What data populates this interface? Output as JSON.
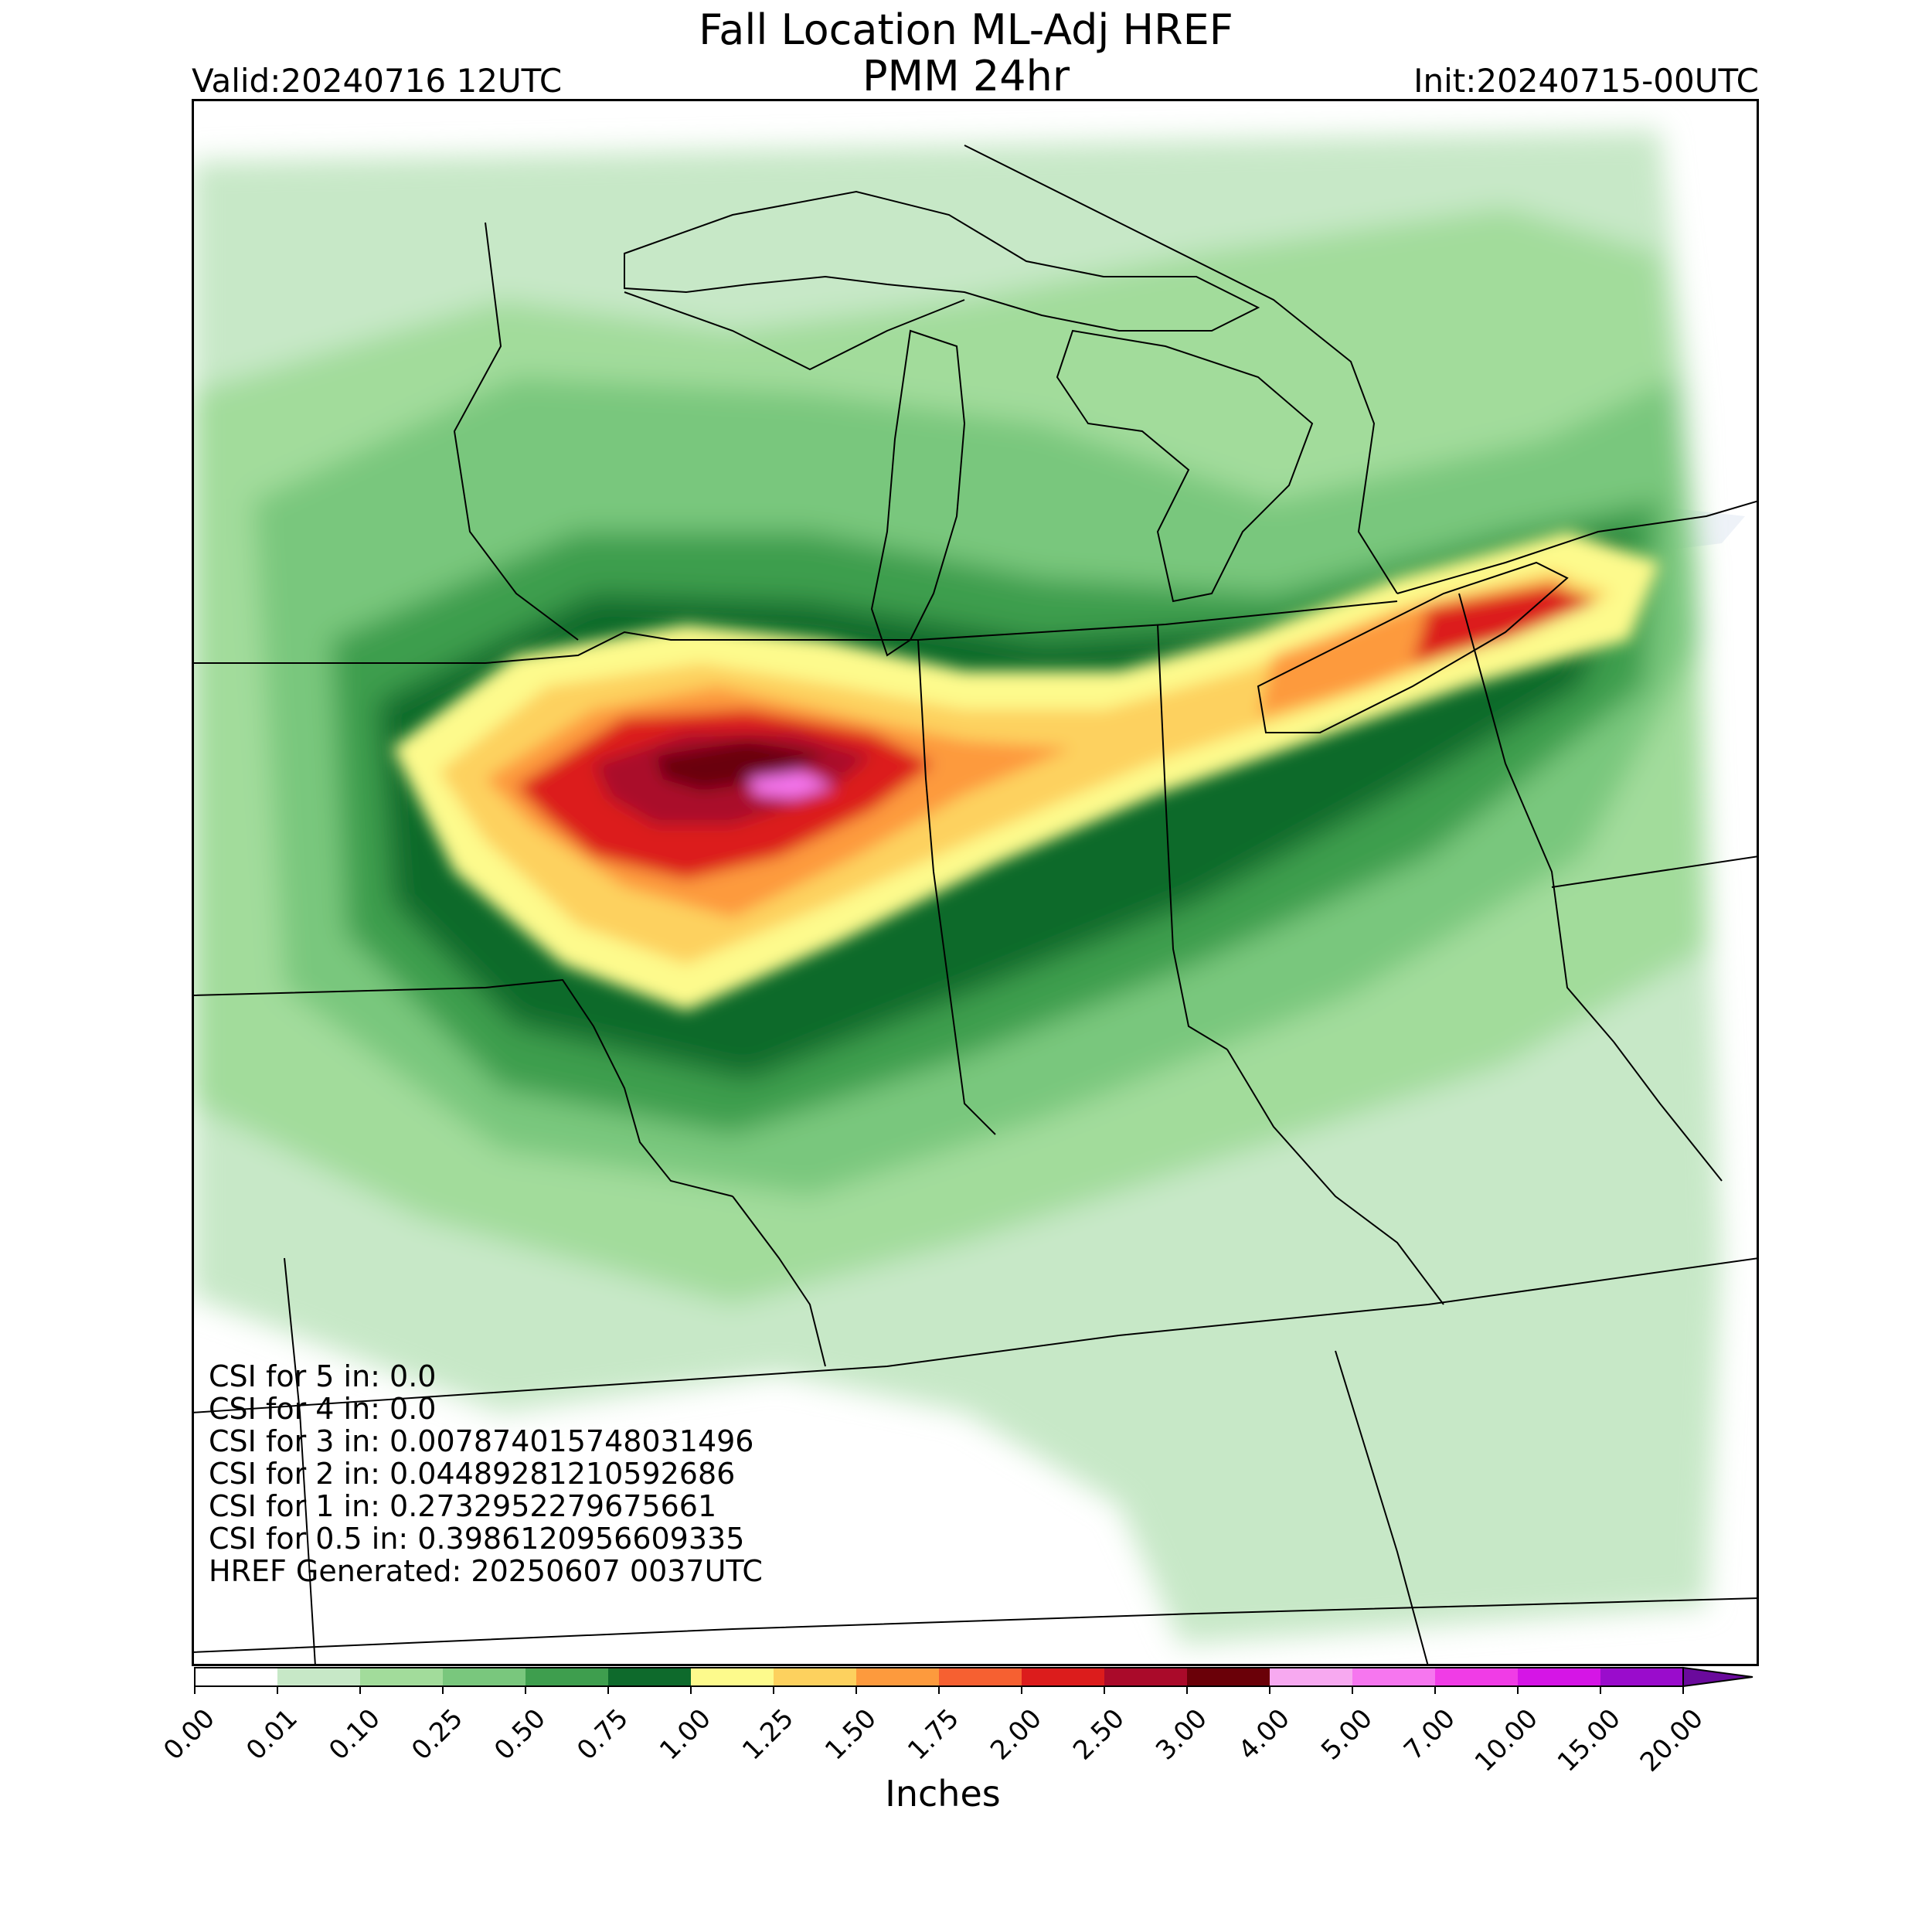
{
  "header": {
    "title_line1": "Fall Location ML-Adj HREF",
    "title_line2": "PMM 24hr",
    "valid": "Valid:20240716 12UTC",
    "init": "Init:20240715-00UTC"
  },
  "stats": [
    "CSI for 5 in: 0.0",
    "CSI for 4 in: 0.0",
    "CSI for 3 in: 0.007874015748031496",
    "CSI for 2 in: 0.044892812105926​86",
    "CSI for 1 in: 0.2732952279675661",
    "CSI for 0.5 in: 0.3986120956609335",
    "HREF Generated: 20250607 0037UTC"
  ],
  "colorbar": {
    "label": "Inches",
    "ticks": [
      "0.00",
      "0.01",
      "0.10",
      "0.25",
      "0.50",
      "0.75",
      "1.00",
      "1.25",
      "1.50",
      "1.75",
      "2.00",
      "2.50",
      "3.00",
      "4.00",
      "5.00",
      "7.00",
      "10.00",
      "15.00",
      "20.00"
    ],
    "colors": [
      "#ffffff",
      "#c7e8c7",
      "#a2dc9b",
      "#79c77d",
      "#3e9e4e",
      "#0e6a2c",
      "#fdfa8c",
      "#fdd15e",
      "#fd9a3d",
      "#f66031",
      "#dc1c1c",
      "#aa0a2a",
      "#6a0008",
      "#f7a9f0",
      "#f676ef",
      "#f03ce6",
      "#d515e6",
      "#9a0ccc"
    ],
    "extend_color": "#6a0a9c"
  },
  "map": {
    "land_color": "#ffffff",
    "water_color": "#eef2f8",
    "border_color": "#000000"
  }
}
